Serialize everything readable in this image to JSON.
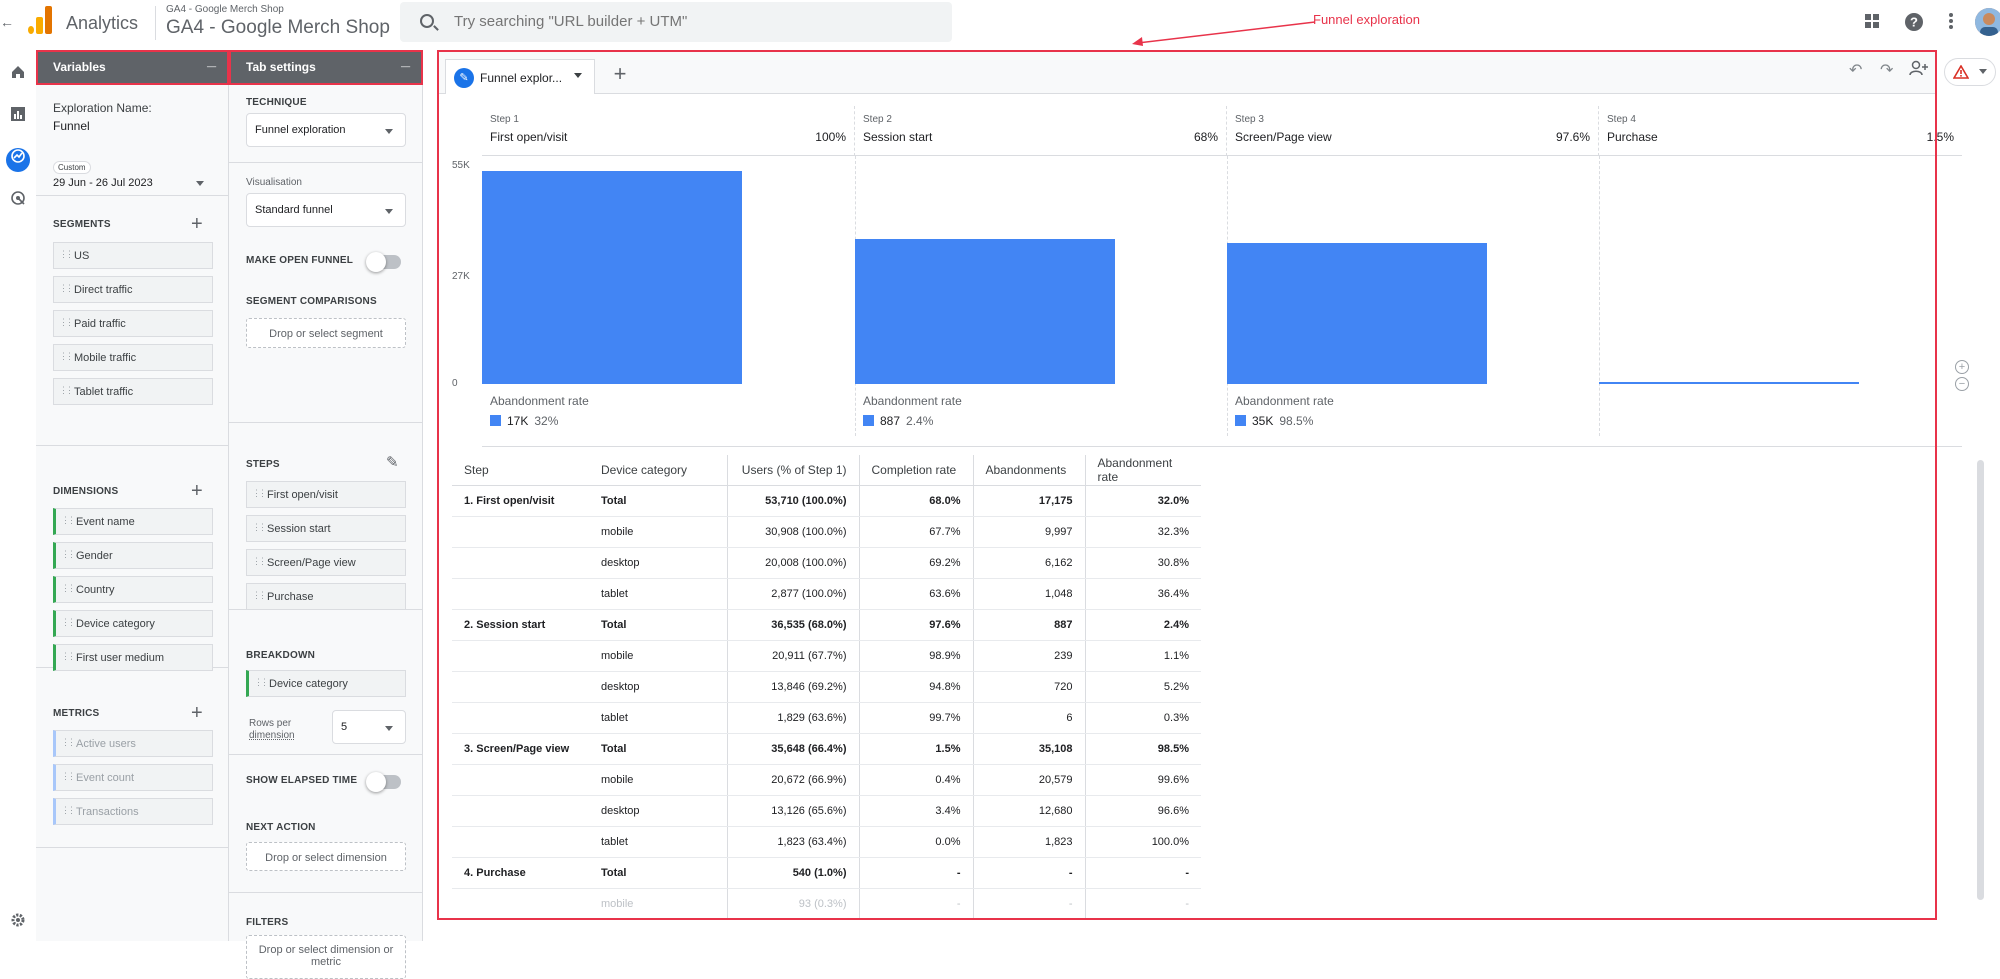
{
  "topbar": {
    "app_name": "Analytics",
    "account_small": "GA4 - Google Merch Shop",
    "account_big": "GA4 - Google Merch Shop",
    "search_placeholder": "Try searching \"URL builder + UTM\"",
    "back_glyph": "←"
  },
  "annotation": {
    "label": "Funnel exploration"
  },
  "variables_panel": {
    "title": "Variables",
    "minimize_glyph": "_",
    "exploration_name_label": "Exploration Name:",
    "exploration_name_value": "Funnel",
    "date_tag": "Custom",
    "date_range": "29 Jun - 26 Jul 2023",
    "segments_label": "SEGMENTS",
    "segments": [
      "US",
      "Direct traffic",
      "Paid traffic",
      "Mobile traffic",
      "Tablet traffic"
    ],
    "dimensions_label": "DIMENSIONS",
    "dimensions": [
      "Event name",
      "Gender",
      "Country",
      "Device category",
      "First user medium"
    ],
    "metrics_label": "METRICS",
    "metrics": [
      "Active users",
      "Event count",
      "Transactions"
    ]
  },
  "tab_settings": {
    "title": "Tab settings",
    "minimize_glyph": "_",
    "technique_label": "TECHNIQUE",
    "technique_value": "Funnel exploration",
    "visualisation_label": "Visualisation",
    "visualisation_value": "Standard funnel",
    "open_funnel_label": "MAKE OPEN FUNNEL",
    "segment_comparisons_label": "SEGMENT COMPARISONS",
    "segment_drop": "Drop or select segment",
    "steps_label": "STEPS",
    "steps": [
      "First open/visit",
      "Session start",
      "Screen/Page view",
      "Purchase"
    ],
    "breakdown_label": "BREAKDOWN",
    "breakdown_value": "Device category",
    "rows_label_1": "Rows per",
    "rows_label_2": "dimension",
    "rows_value": "5",
    "elapsed_label": "SHOW ELAPSED TIME",
    "next_action_label": "NEXT ACTION",
    "next_action_drop": "Drop or select dimension",
    "filters_label": "FILTERS",
    "filters_drop_1": "Drop or select dimension or",
    "filters_drop_2": "metric"
  },
  "main": {
    "tab_label": "Funnel explor...",
    "add_tab_glyph": "+"
  },
  "chart_data": {
    "type": "bar",
    "ylim": [
      0,
      55000
    ],
    "yticks": [
      "55K",
      "27K",
      "0"
    ],
    "ytick_values": [
      55000,
      27000,
      0
    ],
    "steps": [
      {
        "step": "Step 1",
        "name": "First open/visit",
        "pct": "100%",
        "value": 53710,
        "abandon_label": "Abandonment rate",
        "abandon_count": "17K",
        "abandon_pct": "32%"
      },
      {
        "step": "Step 2",
        "name": "Session start",
        "pct": "68%",
        "value": 36535,
        "abandon_label": "Abandonment rate",
        "abandon_count": "887",
        "abandon_pct": "2.4%"
      },
      {
        "step": "Step 3",
        "name": "Screen/Page view",
        "pct": "97.6%",
        "value": 35648,
        "abandon_label": "Abandonment rate",
        "abandon_count": "35K",
        "abandon_pct": "98.5%"
      },
      {
        "step": "Step 4",
        "name": "Purchase",
        "pct": "1.5%",
        "value": 540,
        "abandon_label": "",
        "abandon_count": "",
        "abandon_pct": ""
      }
    ],
    "color": "#4285f4"
  },
  "table": {
    "headers": [
      "Step",
      "Device category",
      "Users (% of Step 1)",
      "Completion rate",
      "Abandonments",
      "Abandonment rate"
    ],
    "rows": [
      [
        "1. First open/visit",
        "Total",
        "53,710 (100.0%)",
        "68.0%",
        "17,175",
        "32.0%"
      ],
      [
        "",
        "mobile",
        "30,908 (100.0%)",
        "67.7%",
        "9,997",
        "32.3%"
      ],
      [
        "",
        "desktop",
        "20,008 (100.0%)",
        "69.2%",
        "6,162",
        "30.8%"
      ],
      [
        "",
        "tablet",
        "2,877 (100.0%)",
        "63.6%",
        "1,048",
        "36.4%"
      ],
      [
        "2. Session start",
        "Total",
        "36,535 (68.0%)",
        "97.6%",
        "887",
        "2.4%"
      ],
      [
        "",
        "mobile",
        "20,911 (67.7%)",
        "98.9%",
        "239",
        "1.1%"
      ],
      [
        "",
        "desktop",
        "13,846 (69.2%)",
        "94.8%",
        "720",
        "5.2%"
      ],
      [
        "",
        "tablet",
        "1,829 (63.6%)",
        "99.7%",
        "6",
        "0.3%"
      ],
      [
        "3. Screen/Page view",
        "Total",
        "35,648 (66.4%)",
        "1.5%",
        "35,108",
        "98.5%"
      ],
      [
        "",
        "mobile",
        "20,672 (66.9%)",
        "0.4%",
        "20,579",
        "99.6%"
      ],
      [
        "",
        "desktop",
        "13,126 (65.6%)",
        "3.4%",
        "12,680",
        "96.6%"
      ],
      [
        "",
        "tablet",
        "1,823 (63.4%)",
        "0.0%",
        "1,823",
        "100.0%"
      ],
      [
        "4. Purchase",
        "Total",
        "540 (1.0%)",
        "-",
        "-",
        "-"
      ],
      [
        "",
        "mobile",
        "93 (0.3%)",
        "-",
        "-",
        "-"
      ]
    ]
  }
}
